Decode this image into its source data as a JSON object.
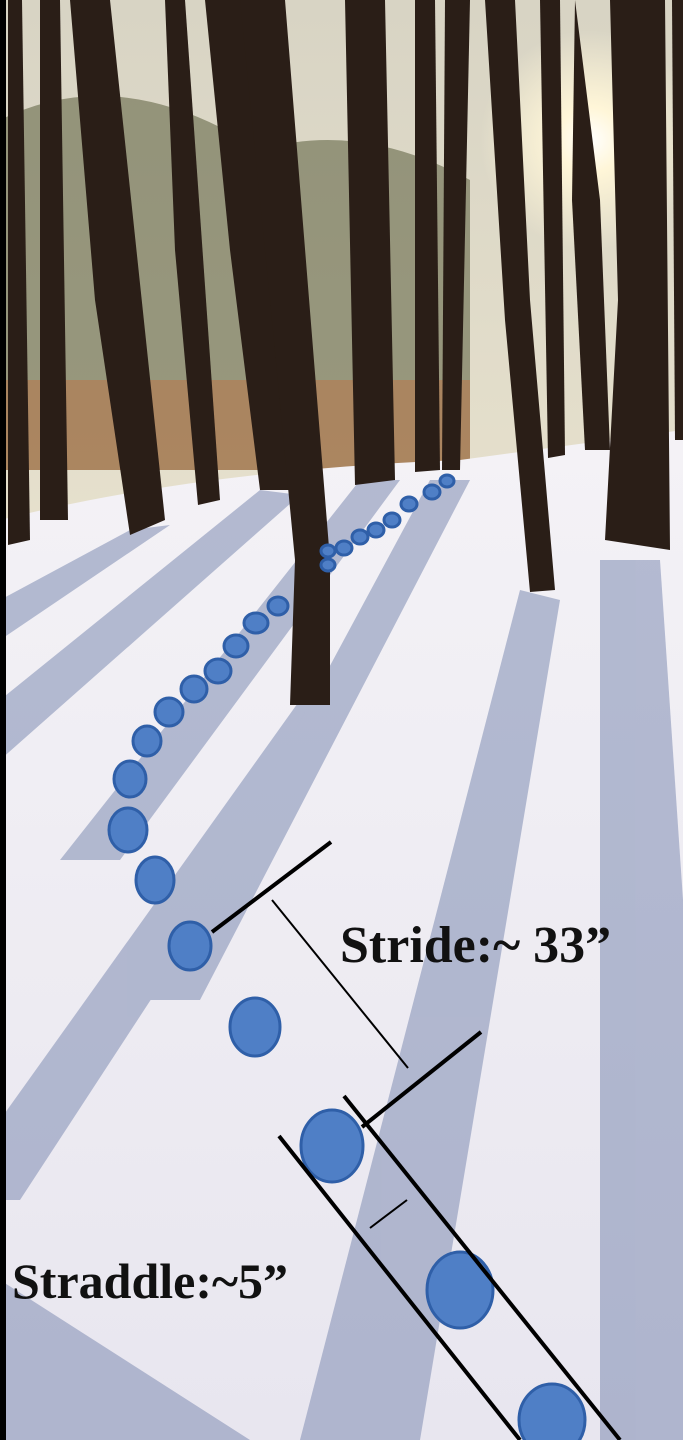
{
  "annotations": {
    "stride": "Stride:~ 33”",
    "straddle": "Straddle:~5”"
  }
}
